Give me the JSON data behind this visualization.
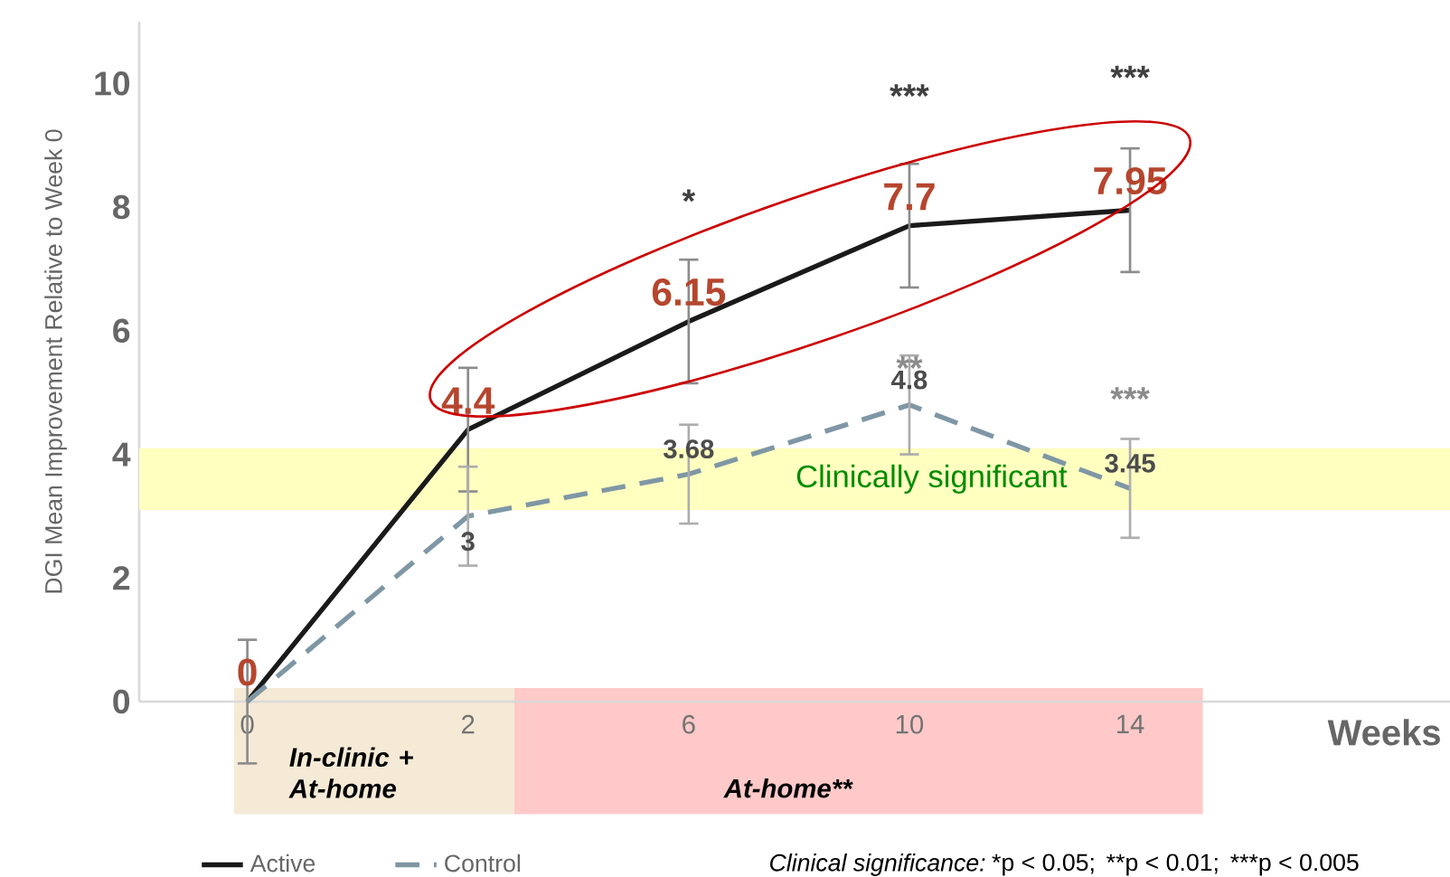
{
  "chart_data": {
    "type": "line",
    "xlabel": "Weeks",
    "ylabel": "DGI Mean Improvement Relative to Week 0",
    "categories": [
      "0",
      "2",
      "6",
      "10",
      "14"
    ],
    "series": [
      {
        "name": "Active",
        "color": "#1a1a1a",
        "line_style": "solid",
        "values": [
          0,
          4.4,
          6.15,
          7.7,
          7.95
        ],
        "errors": [
          1,
          1,
          1,
          1,
          1
        ],
        "value_labels": [
          "0",
          "4.4",
          "6.15",
          "7.7",
          "7.95"
        ]
      },
      {
        "name": "Control",
        "color": "#7f97a5",
        "line_style": "dashed",
        "values": [
          0,
          3,
          3.68,
          4.8,
          3.45
        ],
        "errors": [
          null,
          0.8,
          0.8,
          0.8,
          0.8
        ],
        "value_labels": [
          null,
          "3",
          "3.68",
          "4.8",
          "3.45"
        ]
      }
    ],
    "ylim": [
      0,
      11
    ],
    "yticks": [
      0,
      2,
      4,
      6,
      8,
      10
    ],
    "grid": false,
    "legend": "bottom",
    "marker": "none",
    "bands": [
      {
        "axis": "y",
        "from": 3.1,
        "to": 4.1,
        "label": "Clinically significant",
        "color": "#ffffc0"
      }
    ],
    "annotations": [
      "*",
      "***",
      "***",
      "**",
      "***",
      "Clinical significance:",
      "*p < 0.05;",
      "**p < 0.01;",
      "***p < 0.005",
      "In-clinic + At-home",
      "At-home**"
    ]
  }
}
